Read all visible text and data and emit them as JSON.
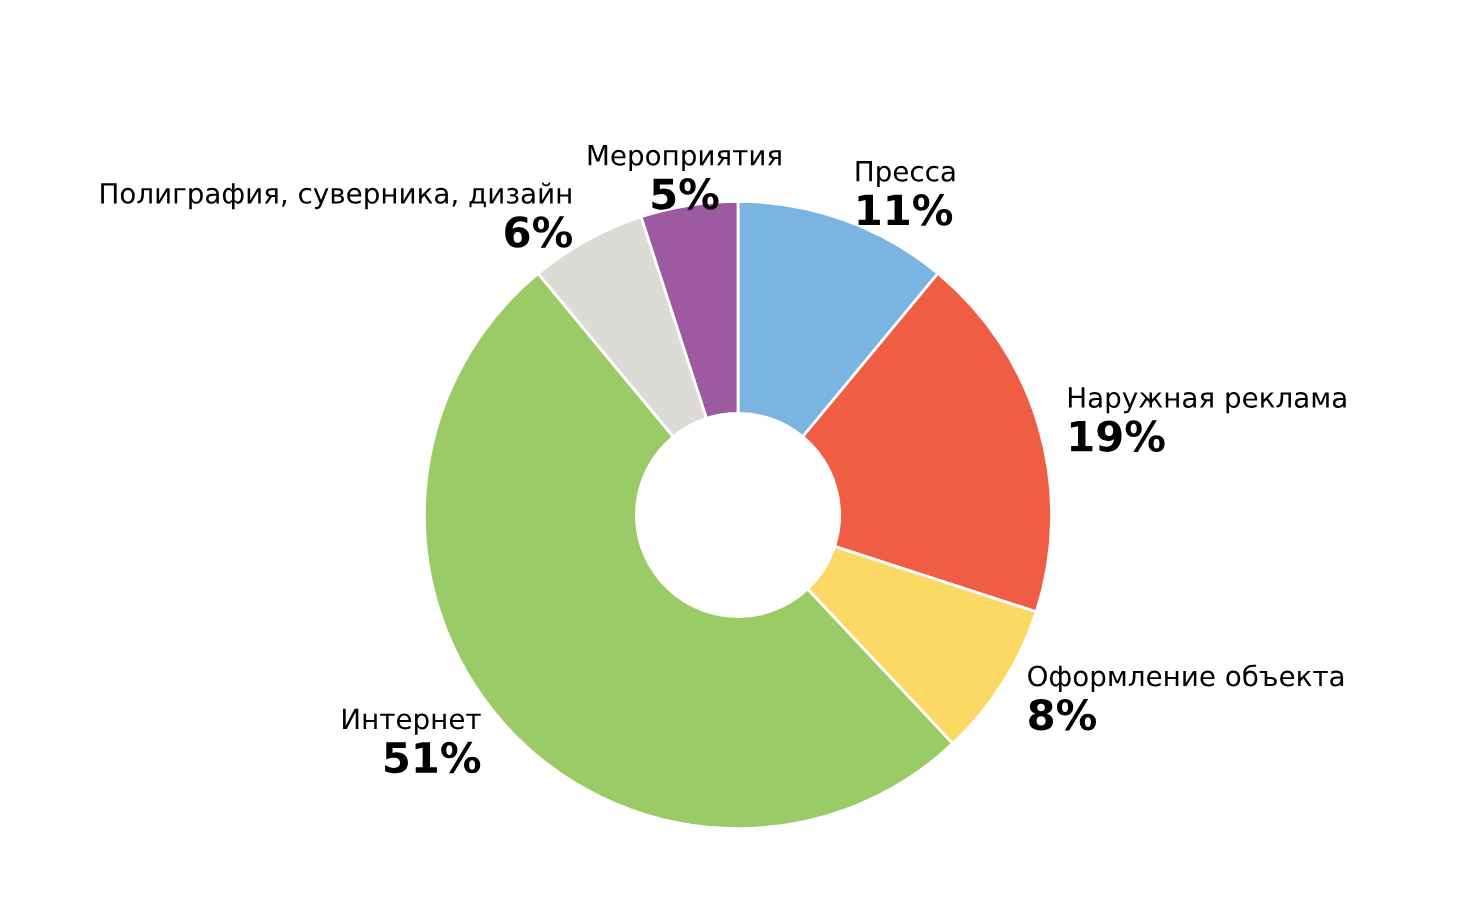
{
  "chart_data": {
    "type": "donut",
    "categories": [
      "Пресса",
      "Наружная реклама",
      "Оформление объекта",
      "Интернет",
      "Полиграфия, суверника, дизайн",
      "Мероприятия"
    ],
    "values": [
      11,
      19,
      8,
      51,
      6,
      5
    ],
    "colors": [
      "#7ab4e0",
      "#f05d45",
      "#fcd965",
      "#9acb66",
      "#dddbd5",
      "#9e5aa0"
    ],
    "value_labels": [
      "11%",
      "19%",
      "8%",
      "51%",
      "6%",
      "5%"
    ],
    "legend": false
  }
}
